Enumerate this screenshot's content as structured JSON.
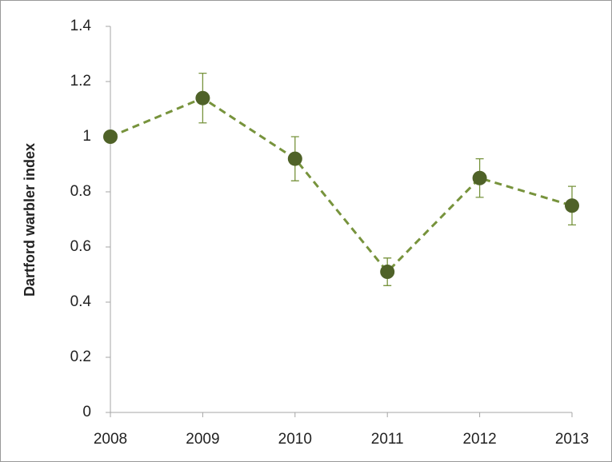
{
  "chart_data": {
    "type": "line",
    "y_label": "Dartford warbler index",
    "categories": [
      "2008",
      "2009",
      "2010",
      "2011",
      "2012",
      "2013"
    ],
    "values": [
      1.0,
      1.14,
      0.92,
      0.51,
      0.85,
      0.75
    ],
    "errors": [
      null,
      0.09,
      0.08,
      0.05,
      0.07,
      0.07
    ],
    "color": "#4f6228",
    "line_color": "#77933c",
    "line_style": "dashed",
    "ylim": [
      0,
      1.4
    ],
    "yticks": [
      0,
      0.2,
      0.4,
      0.6,
      0.8,
      1,
      1.2,
      1.4
    ],
    "grid": false
  }
}
